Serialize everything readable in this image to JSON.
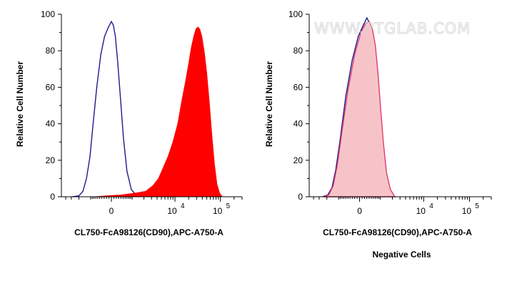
{
  "watermark": "WWW.PTGLAB.COM",
  "chart_data": [
    {
      "type": "area",
      "title": "",
      "xlabel": "CL750-FcA98126(CD90),APC-A750-A",
      "ylabel": "Relative Cell Number",
      "caption": "",
      "xscale": "biexponential",
      "ylim": [
        0,
        100
      ],
      "yticks": [
        0,
        20,
        40,
        60,
        80,
        100
      ],
      "xticks": [
        {
          "value": 0,
          "label": "0"
        },
        {
          "value": 10000,
          "label": "10",
          "exp": "4"
        },
        {
          "value": 100000,
          "label": "10",
          "exp": "5"
        }
      ],
      "grid": false,
      "series": [
        {
          "role": "control",
          "style": "line",
          "color": "#1c1c8c",
          "points": [
            [
              -2800,
              0
            ],
            [
              -2000,
              0.5
            ],
            [
              -1600,
              3
            ],
            [
              -1300,
              10
            ],
            [
              -1050,
              22
            ],
            [
              -850,
              40
            ],
            [
              -650,
              60
            ],
            [
              -450,
              78
            ],
            [
              -280,
              88
            ],
            [
              -120,
              93
            ],
            [
              0,
              96
            ],
            [
              80,
              94
            ],
            [
              160,
              88
            ],
            [
              260,
              74
            ],
            [
              380,
              54
            ],
            [
              520,
              32
            ],
            [
              700,
              14
            ],
            [
              950,
              4
            ],
            [
              1300,
              0.8
            ],
            [
              1800,
              0
            ]
          ]
        },
        {
          "role": "stained",
          "style": "filled",
          "color": "#ff0000",
          "points": [
            [
              -800,
              0
            ],
            [
              -200,
              0.5
            ],
            [
              400,
              1
            ],
            [
              1200,
              2
            ],
            [
              2200,
              3
            ],
            [
              3200,
              6
            ],
            [
              4300,
              10
            ],
            [
              5500,
              16
            ],
            [
              7000,
              22
            ],
            [
              9000,
              30
            ],
            [
              11500,
              40
            ],
            [
              14000,
              52
            ],
            [
              17000,
              63
            ],
            [
              20000,
              73
            ],
            [
              23000,
              82
            ],
            [
              26000,
              88
            ],
            [
              29000,
              92
            ],
            [
              32000,
              93
            ],
            [
              35000,
              92
            ],
            [
              39000,
              88
            ],
            [
              44000,
              80
            ],
            [
              50000,
              68
            ],
            [
              57000,
              52
            ],
            [
              65000,
              34
            ],
            [
              74000,
              18
            ],
            [
              84000,
              7
            ],
            [
              96000,
              2
            ],
            [
              110000,
              0
            ]
          ]
        }
      ]
    },
    {
      "type": "area",
      "title": "",
      "xlabel": "CL750-FcA98126(CD90),APC-A750-A",
      "ylabel": "Relative Cell Number",
      "caption": "Negative Cells",
      "xscale": "biexponential",
      "ylim": [
        0,
        100
      ],
      "yticks": [
        0,
        20,
        40,
        60,
        80,
        100
      ],
      "xticks": [
        {
          "value": 0,
          "label": "0"
        },
        {
          "value": 10000,
          "label": "10",
          "exp": "4"
        },
        {
          "value": 100000,
          "label": "10",
          "exp": "5"
        }
      ],
      "grid": false,
      "series": [
        {
          "role": "control",
          "style": "line",
          "color": "#1c1c8c",
          "points": [
            [
              -2500,
              0
            ],
            [
              -1900,
              1
            ],
            [
              -1500,
              5
            ],
            [
              -1200,
              15
            ],
            [
              -900,
              32
            ],
            [
              -600,
              55
            ],
            [
              -300,
              75
            ],
            [
              -50,
              88
            ],
            [
              150,
              94
            ],
            [
              300,
              98
            ],
            [
              420,
              95
            ],
            [
              560,
              88
            ],
            [
              720,
              70
            ],
            [
              900,
              46
            ],
            [
              1100,
              24
            ],
            [
              1350,
              9
            ],
            [
              1700,
              2
            ],
            [
              2200,
              0
            ]
          ]
        },
        {
          "role": "sample",
          "style": "filled",
          "color": "#f6c4c8",
          "outline": "#e03c6e",
          "points": [
            [
              -2300,
              0
            ],
            [
              -1800,
              1
            ],
            [
              -1400,
              6
            ],
            [
              -1100,
              17
            ],
            [
              -800,
              36
            ],
            [
              -500,
              58
            ],
            [
              -200,
              78
            ],
            [
              50,
              90
            ],
            [
              250,
              95
            ],
            [
              400,
              96
            ],
            [
              550,
              92
            ],
            [
              700,
              83
            ],
            [
              850,
              68
            ],
            [
              1000,
              50
            ],
            [
              1200,
              30
            ],
            [
              1450,
              13
            ],
            [
              1800,
              4
            ],
            [
              2300,
              0
            ]
          ]
        }
      ]
    }
  ]
}
